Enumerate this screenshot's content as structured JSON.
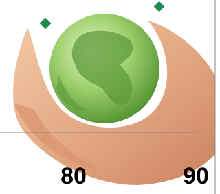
{
  "labels": [
    "80",
    "90"
  ]
}
